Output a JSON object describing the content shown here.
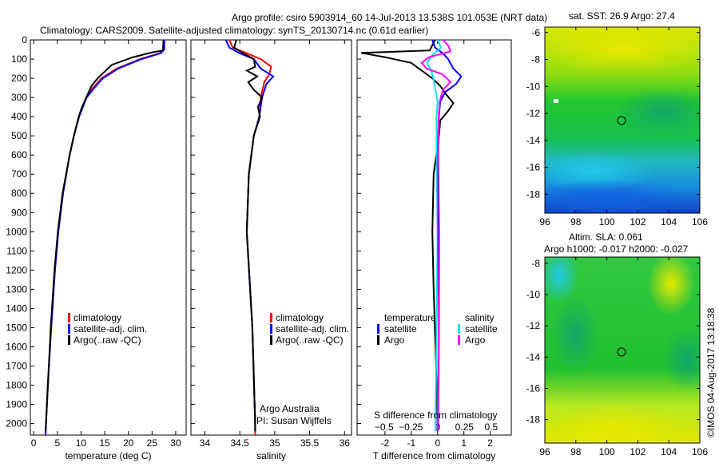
{
  "title_line1": "Argo profile: csiro 5903914_60 14-Jul-2013 13.538S 101.053E (NRT data)",
  "title_line2": "Climatology: CARS2009. Satellite-adjusted climatology: synTS_20130714.nc (0.61d earlier)",
  "timestamp": "©IMOS 04-Aug-2017 13:18:38",
  "colors": {
    "climatology": "#ff0000",
    "satellite": "#0000ff",
    "argo": "#000000",
    "sal_satellite": "#00e5ee",
    "sal_argo": "#ff00ff"
  },
  "chart_data": [
    {
      "type": "line",
      "id": "temperature",
      "xlabel": "temperature (deg C)",
      "ylabel": "depth",
      "xlim": [
        -0.7,
        32.2
      ],
      "ylim": [
        0,
        2060
      ],
      "xticks": [
        0,
        5,
        10,
        15,
        20,
        25,
        30
      ],
      "yticks": [
        0,
        100,
        200,
        300,
        400,
        500,
        600,
        700,
        800,
        900,
        1000,
        1100,
        1200,
        1300,
        1400,
        1500,
        1600,
        1700,
        1800,
        1900,
        2000
      ],
      "legend": [
        "climatology",
        "satellite-adj. clim.",
        "Argo(..raw -QC)"
      ],
      "series": [
        {
          "name": "climatology",
          "color": "#ff0000",
          "depth": [
            0,
            50,
            70,
            100,
            150,
            200,
            250,
            300,
            400,
            500,
            600,
            800,
            1000,
            1200,
            1500,
            1800,
            2000,
            2060
          ],
          "values": [
            27.5,
            27.5,
            26.5,
            22.5,
            17.5,
            14.3,
            12.5,
            11.1,
            9.6,
            8.5,
            7.6,
            6.2,
            5.2,
            4.5,
            3.7,
            3.0,
            2.6,
            2.5
          ]
        },
        {
          "name": "satellite-adj. clim.",
          "color": "#0000ff",
          "depth": [
            0,
            50,
            70,
            100,
            150,
            200,
            250,
            300,
            400,
            500,
            600,
            800,
            1000,
            1200,
            1500,
            1800,
            2000,
            2060
          ],
          "values": [
            27.6,
            27.6,
            26.8,
            22.8,
            17.8,
            14.6,
            12.8,
            11.2,
            9.6,
            8.5,
            7.6,
            6.2,
            5.2,
            4.5,
            3.7,
            3.0,
            2.6,
            2.5
          ]
        },
        {
          "name": "Argo(..raw -QC)",
          "color": "#000000",
          "depth": [
            0,
            55,
            65,
            90,
            130,
            170,
            200,
            240,
            290,
            350,
            400,
            500,
            600,
            800,
            1000,
            1200,
            1500,
            1800,
            2000,
            2040
          ],
          "values": [
            27.4,
            27.3,
            25,
            21,
            16.5,
            14.8,
            13.5,
            12.2,
            11.3,
            10.2,
            9.5,
            8.5,
            7.6,
            6.1,
            5.1,
            4.4,
            3.6,
            3.0,
            2.6,
            2.5
          ]
        }
      ]
    },
    {
      "type": "line",
      "id": "salinity",
      "xlabel": "salinity",
      "xlim": [
        33.8,
        36.1
      ],
      "ylim": [
        0,
        2060
      ],
      "xticks": [
        34,
        34.5,
        35,
        35.5,
        36
      ],
      "legend": [
        "climatology",
        "satellite-adj. clim.",
        "Argo(..raw -QC)"
      ],
      "annotation": [
        "Argo Australia",
        "PI: Susan Wijffels"
      ],
      "series": [
        {
          "name": "climatology",
          "color": "#ff0000",
          "depth": [
            0,
            40,
            70,
            100,
            140,
            180,
            220,
            300,
            400,
            500,
            700,
            1000,
            1500,
            2000,
            2060
          ],
          "values": [
            34.35,
            34.4,
            34.6,
            34.8,
            34.95,
            34.92,
            34.85,
            34.8,
            34.78,
            34.7,
            34.63,
            34.6,
            34.68,
            34.72,
            34.72
          ]
        },
        {
          "name": "satellite-adj. clim.",
          "color": "#0000ff",
          "depth": [
            0,
            40,
            70,
            100,
            150,
            190,
            230,
            300,
            400,
            500,
            700,
            1000,
            1500,
            2000,
            2040
          ],
          "values": [
            34.3,
            34.35,
            34.5,
            34.7,
            34.8,
            34.98,
            34.88,
            34.82,
            34.78,
            34.7,
            34.63,
            34.6,
            34.68,
            34.72,
            34.72
          ]
        },
        {
          "name": "Argo(..raw -QC)",
          "color": "#000000",
          "depth": [
            0,
            40,
            70,
            100,
            140,
            160,
            190,
            220,
            260,
            300,
            350,
            400,
            500,
            700,
            1000,
            1500,
            2000,
            2040
          ],
          "values": [
            34.45,
            34.42,
            34.55,
            34.7,
            34.72,
            34.6,
            34.75,
            34.62,
            34.7,
            34.82,
            34.76,
            34.79,
            34.7,
            34.63,
            34.6,
            34.68,
            34.72,
            34.72
          ]
        }
      ]
    },
    {
      "type": "line",
      "id": "differences",
      "xlabel": "T difference from climatology",
      "xlabel2": "S difference from climatology",
      "xlim": [
        -3.06,
        2.8
      ],
      "xlim_S": [
        -0.5,
        0.5
      ],
      "xticks": [
        -2,
        -1,
        0,
        1,
        2
      ],
      "xticks_S": [
        -0.5,
        -0.25,
        0,
        0.25,
        0.5
      ],
      "ylim": [
        0,
        2060
      ],
      "legend_temperature": {
        "title": "temperature",
        "items": [
          "satellite",
          "Argo"
        ]
      },
      "legend_salinity": {
        "title": "salinity",
        "items": [
          "satellite",
          "Argo"
        ]
      },
      "series": [
        {
          "name": "temperature Argo",
          "axis": "T",
          "color": "#000000",
          "depth": [
            0,
            55,
            68,
            90,
            120,
            160,
            200,
            240,
            280,
            330,
            370,
            420,
            500,
            700,
            1000,
            1300,
            1600,
            2000,
            2040
          ],
          "values": [
            -0.1,
            -0.3,
            -2.9,
            -2.0,
            -1.0,
            -0.6,
            -0.2,
            0.1,
            0.3,
            0.6,
            0.4,
            0.1,
            0.05,
            -0.15,
            -0.2,
            -0.15,
            -0.08,
            0,
            0
          ]
        },
        {
          "name": "temperature satellite",
          "axis": "T",
          "color": "#0000ff",
          "depth": [
            0,
            40,
            70,
            100,
            150,
            190,
            230,
            270,
            320,
            400,
            600,
            1000,
            1500,
            2000,
            2040
          ],
          "values": [
            -0.2,
            -0.1,
            0.2,
            0.4,
            0.6,
            0.9,
            0.7,
            0.3,
            0.1,
            0.05,
            0.02,
            0.05,
            0.05,
            0.02,
            0
          ]
        },
        {
          "name": "salinity satellite",
          "axis": "S",
          "color": "#00e5ee",
          "depth": [
            0,
            40,
            80,
            120,
            160,
            200,
            260,
            320,
            400,
            600,
            1000,
            1500,
            2000,
            2040
          ],
          "values": [
            0,
            0.03,
            -0.05,
            -0.1,
            -0.06,
            -0.04,
            -0.02,
            0,
            -0.01,
            -0.01,
            0,
            -0.01,
            -0.02,
            -0.02
          ]
        },
        {
          "name": "salinity Argo",
          "axis": "S",
          "color": "#ff00ff",
          "depth": [
            0,
            30,
            60,
            90,
            120,
            150,
            180,
            220,
            260,
            320,
            400,
            600,
            1000,
            1500,
            2000,
            2040
          ],
          "values": [
            0.05,
            0.1,
            0.12,
            -0.08,
            -0.15,
            -0.1,
            0.05,
            0.12,
            0.05,
            0.02,
            0.01,
            0,
            0,
            0.01,
            0,
            0
          ]
        }
      ]
    }
  ],
  "maps": [
    {
      "title": "sat. SST: 26.9 Argo: 27.4",
      "lon_ticks": [
        "96",
        "98",
        "100",
        "102",
        "104",
        "106"
      ],
      "lat_ticks": [
        "-6",
        "-8",
        "-10",
        "-12",
        "-14",
        "-16",
        "-18"
      ],
      "lat_range": [
        -19.4,
        -5.6
      ],
      "profile_lon": 101.05,
      "profile_lat": -13.54
    },
    {
      "title": "Altim. SLA: 0.061",
      "subtitle": "Argo h1000: -0.017 h2000: -0.027",
      "lon_ticks": [
        "96",
        "98",
        "100",
        "102",
        "104",
        "106"
      ],
      "lat_ticks": [
        "-8",
        "-10",
        "-12",
        "-14",
        "-16",
        "-18"
      ],
      "lat_range": [
        -19.5,
        -7.6
      ],
      "profile_lon": 101.05,
      "profile_lat": -13.54
    }
  ]
}
